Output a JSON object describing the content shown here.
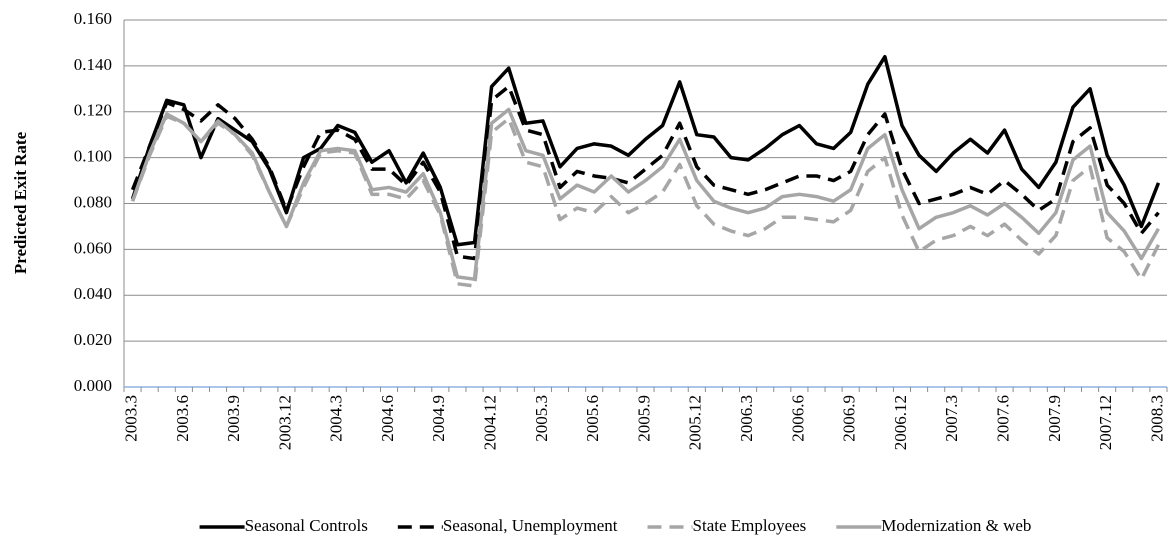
{
  "chart_data": {
    "type": "line",
    "y_label": "Predicted Exit Rate",
    "categories": [
      "2003.3",
      null,
      null,
      "2003.6",
      null,
      null,
      "2003.9",
      null,
      null,
      "2003.12",
      null,
      null,
      "2004.3",
      null,
      null,
      "2004.6",
      null,
      null,
      "2004.9",
      null,
      null,
      "2004.12",
      null,
      null,
      "2005.3",
      null,
      null,
      "2005.6",
      null,
      null,
      "2005.9",
      null,
      null,
      "2005.12",
      null,
      null,
      "2006.3",
      null,
      null,
      "2006.6",
      null,
      null,
      "2006.9",
      null,
      null,
      "2006.12",
      null,
      null,
      "2007.3",
      null,
      null,
      "2007.6",
      null,
      null,
      "2007.9",
      null,
      null,
      "2007.12",
      null,
      null,
      "2008.3"
    ],
    "ylim": [
      0,
      0.16
    ],
    "yticks": [
      {
        "value": 0,
        "label": "0.000"
      },
      {
        "value": 0.02,
        "label": "0.020"
      },
      {
        "value": 0.04,
        "label": "0.040"
      },
      {
        "value": 0.06,
        "label": "0.060"
      },
      {
        "value": 0.08,
        "label": "0.080"
      },
      {
        "value": 0.1,
        "label": "0.100"
      },
      {
        "value": 0.12,
        "label": "0.120"
      },
      {
        "value": 0.14,
        "label": "0.140"
      },
      {
        "value": 0.16,
        "label": "0.160"
      }
    ],
    "grid": true,
    "legend": "bottom",
    "series": [
      {
        "name": "Seasonal Controls",
        "color": "#000000",
        "dashed": false,
        "values": [
          0.082,
          0.105,
          0.125,
          0.123,
          0.1,
          0.117,
          0.112,
          0.107,
          0.095,
          0.076,
          0.1,
          0.104,
          0.114,
          0.111,
          0.098,
          0.103,
          0.089,
          0.102,
          0.087,
          0.062,
          0.063,
          0.131,
          0.139,
          0.115,
          0.116,
          0.096,
          0.104,
          0.106,
          0.105,
          0.101,
          0.108,
          0.114,
          0.133,
          0.11,
          0.109,
          0.1,
          0.099,
          0.104,
          0.11,
          0.114,
          0.106,
          0.104,
          0.111,
          0.132,
          0.144,
          0.114,
          0.101,
          0.094,
          0.102,
          0.108,
          0.102,
          0.112,
          0.095,
          0.087,
          0.098,
          0.122,
          0.13,
          0.101,
          0.088,
          0.07,
          0.089
        ]
      },
      {
        "name": "Seasonal, Unemployment",
        "color": "#000000",
        "dashed": true,
        "values": [
          0.086,
          0.105,
          0.124,
          0.121,
          0.116,
          0.123,
          0.117,
          0.108,
          0.096,
          0.077,
          0.096,
          0.111,
          0.112,
          0.108,
          0.095,
          0.095,
          0.088,
          0.098,
          0.085,
          0.057,
          0.056,
          0.125,
          0.131,
          0.112,
          0.11,
          0.087,
          0.094,
          0.092,
          0.091,
          0.089,
          0.095,
          0.101,
          0.115,
          0.096,
          0.088,
          0.086,
          0.084,
          0.086,
          0.089,
          0.092,
          0.092,
          0.09,
          0.094,
          0.11,
          0.119,
          0.095,
          0.08,
          0.082,
          0.084,
          0.087,
          0.084,
          0.09,
          0.084,
          0.077,
          0.082,
          0.107,
          0.113,
          0.088,
          0.08,
          0.067,
          0.076
        ]
      },
      {
        "name": "State Employees",
        "color": "#a6a6a6",
        "dashed": true,
        "values": [
          0.081,
          0.101,
          0.118,
          0.115,
          0.107,
          0.115,
          0.11,
          0.101,
          0.085,
          0.07,
          0.087,
          0.102,
          0.103,
          0.102,
          0.084,
          0.084,
          0.082,
          0.09,
          0.075,
          0.045,
          0.044,
          0.111,
          0.117,
          0.098,
          0.096,
          0.073,
          0.078,
          0.076,
          0.083,
          0.076,
          0.08,
          0.085,
          0.097,
          0.079,
          0.071,
          0.068,
          0.066,
          0.069,
          0.074,
          0.074,
          0.073,
          0.072,
          0.077,
          0.094,
          0.1,
          0.075,
          0.059,
          0.064,
          0.066,
          0.07,
          0.066,
          0.071,
          0.064,
          0.058,
          0.066,
          0.09,
          0.096,
          0.065,
          0.059,
          0.047,
          0.062
        ]
      },
      {
        "name": "Modernization & web",
        "color": "#a6a6a6",
        "dashed": false,
        "values": [
          0.081,
          0.102,
          0.119,
          0.115,
          0.107,
          0.116,
          0.11,
          0.102,
          0.085,
          0.07,
          0.089,
          0.103,
          0.104,
          0.103,
          0.086,
          0.087,
          0.085,
          0.093,
          0.076,
          0.048,
          0.047,
          0.115,
          0.121,
          0.103,
          0.101,
          0.082,
          0.088,
          0.085,
          0.092,
          0.085,
          0.09,
          0.096,
          0.108,
          0.09,
          0.081,
          0.078,
          0.076,
          0.078,
          0.083,
          0.084,
          0.083,
          0.081,
          0.086,
          0.104,
          0.11,
          0.086,
          0.069,
          0.074,
          0.076,
          0.079,
          0.075,
          0.08,
          0.074,
          0.067,
          0.076,
          0.099,
          0.105,
          0.076,
          0.068,
          0.056,
          0.069
        ]
      }
    ]
  }
}
